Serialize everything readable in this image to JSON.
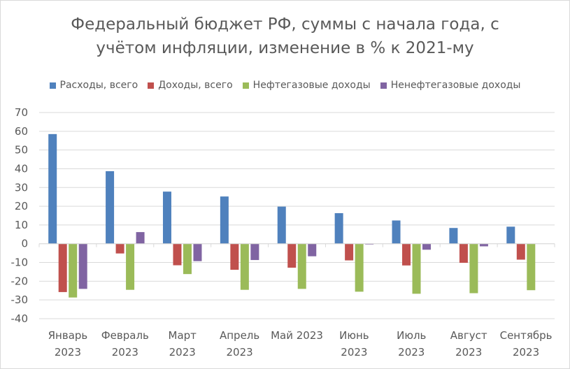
{
  "chart_data": {
    "type": "bar",
    "title_lines": [
      "Федеральный бюджет РФ, суммы с начала года, с",
      "учётом инфляции, изменение в % к 2021-му"
    ],
    "categories": [
      [
        "Январь",
        "2023"
      ],
      [
        "Февраль",
        "2023"
      ],
      [
        "Март",
        "2023"
      ],
      [
        "Апрель",
        "2023"
      ],
      [
        "Май 2023",
        ""
      ],
      [
        "Июнь",
        "2023"
      ],
      [
        "Июль",
        "2023"
      ],
      [
        "Август",
        "2023"
      ],
      [
        "Сентябрь",
        "2023"
      ]
    ],
    "series": [
      {
        "name": "Расходы, всего",
        "color": "#4f81bd",
        "values": [
          58.5,
          38.7,
          27.8,
          25.2,
          19.8,
          16.3,
          12.4,
          8.4,
          9.1
        ]
      },
      {
        "name": "Доходы, всего",
        "color": "#c0504d",
        "values": [
          -25.8,
          -5.2,
          -11.5,
          -13.9,
          -12.8,
          -8.9,
          -11.6,
          -10.2,
          -8.5
        ]
      },
      {
        "name": "Нефтегазовые доходы",
        "color": "#9bbb59",
        "values": [
          -28.7,
          -24.6,
          -16.2,
          -24.6,
          -24.1,
          -25.6,
          -26.7,
          -26.4,
          -24.8
        ]
      },
      {
        "name": "Ненефтегазовые доходы",
        "color": "#8064a2",
        "values": [
          -24.1,
          6.2,
          -9.3,
          -8.7,
          -6.7,
          -0.4,
          -3.2,
          -1.4,
          0
        ]
      }
    ],
    "ylim": [
      -40,
      70
    ],
    "yticks": [
      70,
      60,
      50,
      40,
      30,
      20,
      10,
      0,
      -10,
      -20,
      -30,
      -40
    ],
    "grid": true,
    "legend_position": "top"
  }
}
